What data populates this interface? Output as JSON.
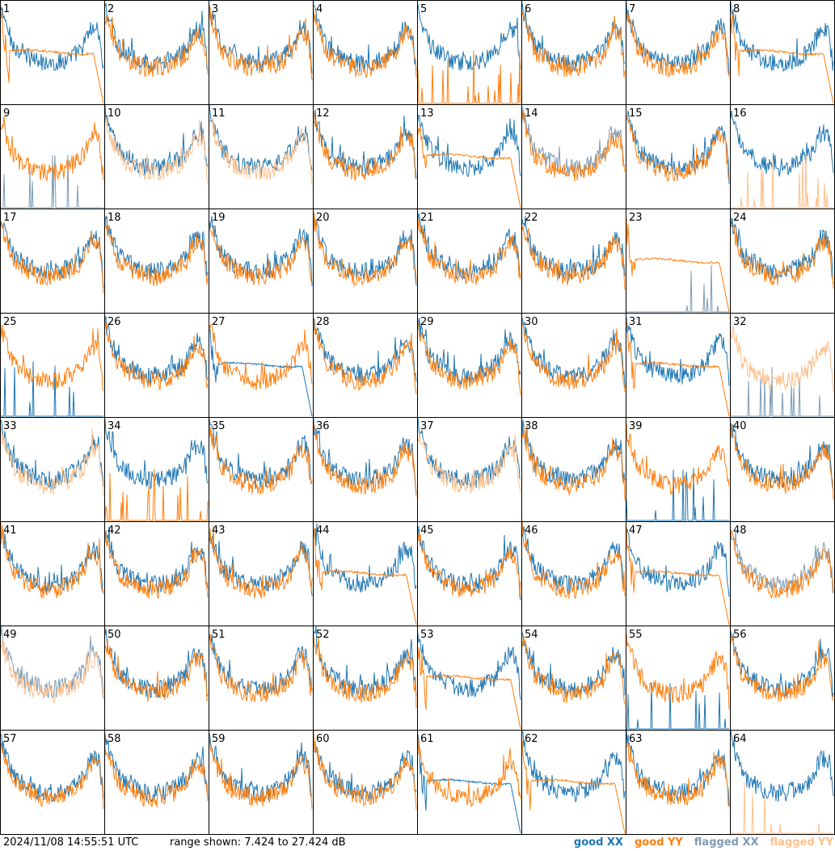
{
  "footer": {
    "timestamp": "2024/11/08 14:55:51 UTC",
    "range_text": "range shown: 7.424 to 27.424 dB"
  },
  "legend": [
    {
      "key": "good_xx",
      "label": "good XX",
      "color": "#1f77b4"
    },
    {
      "key": "good_yy",
      "label": "good YY",
      "color": "#ff7f0e"
    },
    {
      "key": "flagged_xx",
      "label": "flagged XX",
      "color": "#7f9cb4"
    },
    {
      "key": "flagged_yy",
      "label": "flagged YY",
      "color": "#fec08c"
    }
  ],
  "chart_data": {
    "type": "line",
    "layout": "8x8 small multiples",
    "ylim": [
      7.424,
      27.424
    ],
    "yunit": "dB",
    "panels": [
      {
        "id": "1",
        "xx": "good",
        "yy": "good",
        "profile": "normal",
        "yy_shape": "rolloff"
      },
      {
        "id": "2",
        "xx": "good",
        "yy": "good",
        "profile": "normal"
      },
      {
        "id": "3",
        "xx": "good",
        "yy": "good",
        "profile": "normal"
      },
      {
        "id": "4",
        "xx": "good",
        "yy": "good",
        "profile": "normal"
      },
      {
        "id": "5",
        "xx": "good",
        "yy": "good",
        "profile": "normal",
        "yy_shape": "spikes"
      },
      {
        "id": "6",
        "xx": "good",
        "yy": "good",
        "profile": "normal"
      },
      {
        "id": "7",
        "xx": "good",
        "yy": "good",
        "profile": "normal"
      },
      {
        "id": "8",
        "xx": "good",
        "yy": "good",
        "profile": "normal",
        "yy_shape": "rolloff"
      },
      {
        "id": "9",
        "xx": "flagged",
        "yy": "good",
        "profile": "normal",
        "xx_shape": "spikes"
      },
      {
        "id": "10",
        "xx": "good",
        "yy": "flagged",
        "profile": "normal"
      },
      {
        "id": "11",
        "xx": "good",
        "yy": "flagged",
        "profile": "normal"
      },
      {
        "id": "12",
        "xx": "good",
        "yy": "good",
        "profile": "normal"
      },
      {
        "id": "13",
        "xx": "good",
        "yy": "good",
        "profile": "normal",
        "yy_shape": "rolloff"
      },
      {
        "id": "14",
        "xx": "flagged",
        "yy": "good",
        "profile": "normal"
      },
      {
        "id": "15",
        "xx": "good",
        "yy": "good",
        "profile": "normal"
      },
      {
        "id": "16",
        "xx": "good",
        "yy": "flagged",
        "profile": "normal",
        "yy_shape": "spikes"
      },
      {
        "id": "17",
        "xx": "good",
        "yy": "good",
        "profile": "normal"
      },
      {
        "id": "18",
        "xx": "good",
        "yy": "good",
        "profile": "normal"
      },
      {
        "id": "19",
        "xx": "good",
        "yy": "good",
        "profile": "normal"
      },
      {
        "id": "20",
        "xx": "good",
        "yy": "good",
        "profile": "normal"
      },
      {
        "id": "21",
        "xx": "good",
        "yy": "good",
        "profile": "normal"
      },
      {
        "id": "22",
        "xx": "good",
        "yy": "good",
        "profile": "normal"
      },
      {
        "id": "23",
        "xx": "flagged",
        "yy": "good",
        "profile": "normal",
        "xx_shape": "spikes",
        "yy_shape": "rolloff"
      },
      {
        "id": "24",
        "xx": "good",
        "yy": "good",
        "profile": "normal"
      },
      {
        "id": "25",
        "xx": "good",
        "yy": "good",
        "profile": "normal",
        "xx_shape": "spikes"
      },
      {
        "id": "26",
        "xx": "good",
        "yy": "good",
        "profile": "normal"
      },
      {
        "id": "27",
        "xx": "good",
        "yy": "good",
        "profile": "normal",
        "xx_shape": "rolloff"
      },
      {
        "id": "28",
        "xx": "good",
        "yy": "good",
        "profile": "normal"
      },
      {
        "id": "29",
        "xx": "good",
        "yy": "good",
        "profile": "normal"
      },
      {
        "id": "30",
        "xx": "good",
        "yy": "good",
        "profile": "normal"
      },
      {
        "id": "31",
        "xx": "good",
        "yy": "good",
        "profile": "normal",
        "yy_shape": "rolloff"
      },
      {
        "id": "32",
        "xx": "flagged",
        "yy": "flagged",
        "profile": "normal",
        "xx_shape": "spikes"
      },
      {
        "id": "33",
        "xx": "good",
        "yy": "flagged",
        "profile": "normal"
      },
      {
        "id": "34",
        "xx": "good",
        "yy": "good",
        "profile": "normal",
        "yy_shape": "spikes"
      },
      {
        "id": "35",
        "xx": "good",
        "yy": "good",
        "profile": "normal"
      },
      {
        "id": "36",
        "xx": "good",
        "yy": "good",
        "profile": "normal"
      },
      {
        "id": "37",
        "xx": "good",
        "yy": "flagged",
        "profile": "normal"
      },
      {
        "id": "38",
        "xx": "good",
        "yy": "good",
        "profile": "normal"
      },
      {
        "id": "39",
        "xx": "good",
        "yy": "good",
        "profile": "normal",
        "xx_shape": "spikes"
      },
      {
        "id": "40",
        "xx": "good",
        "yy": "good",
        "profile": "normal"
      },
      {
        "id": "41",
        "xx": "good",
        "yy": "good",
        "profile": "normal"
      },
      {
        "id": "42",
        "xx": "good",
        "yy": "good",
        "profile": "normal"
      },
      {
        "id": "43",
        "xx": "good",
        "yy": "good",
        "profile": "normal"
      },
      {
        "id": "44",
        "xx": "good",
        "yy": "good",
        "profile": "normal",
        "yy_shape": "rolloff"
      },
      {
        "id": "45",
        "xx": "good",
        "yy": "good",
        "profile": "normal"
      },
      {
        "id": "46",
        "xx": "good",
        "yy": "good",
        "profile": "normal"
      },
      {
        "id": "47",
        "xx": "good",
        "yy": "good",
        "profile": "normal",
        "yy_shape": "rolloff"
      },
      {
        "id": "48",
        "xx": "flagged",
        "yy": "good",
        "profile": "normal"
      },
      {
        "id": "49",
        "xx": "flagged",
        "yy": "flagged",
        "profile": "normal"
      },
      {
        "id": "50",
        "xx": "good",
        "yy": "good",
        "profile": "normal"
      },
      {
        "id": "51",
        "xx": "good",
        "yy": "good",
        "profile": "normal"
      },
      {
        "id": "52",
        "xx": "good",
        "yy": "good",
        "profile": "normal"
      },
      {
        "id": "53",
        "xx": "good",
        "yy": "good",
        "profile": "normal",
        "yy_shape": "rolloff"
      },
      {
        "id": "54",
        "xx": "good",
        "yy": "good",
        "profile": "normal"
      },
      {
        "id": "55",
        "xx": "good",
        "yy": "good",
        "profile": "normal",
        "xx_shape": "spikes"
      },
      {
        "id": "56",
        "xx": "good",
        "yy": "good",
        "profile": "normal"
      },
      {
        "id": "57",
        "xx": "good",
        "yy": "good",
        "profile": "normal"
      },
      {
        "id": "58",
        "xx": "good",
        "yy": "good",
        "profile": "normal"
      },
      {
        "id": "59",
        "xx": "good",
        "yy": "good",
        "profile": "normal"
      },
      {
        "id": "60",
        "xx": "good",
        "yy": "good",
        "profile": "normal"
      },
      {
        "id": "61",
        "xx": "good",
        "yy": "good",
        "profile": "normal",
        "xx_shape": "rolloff"
      },
      {
        "id": "62",
        "xx": "good",
        "yy": "good",
        "profile": "normal",
        "yy_shape": "rolloff"
      },
      {
        "id": "63",
        "xx": "good",
        "yy": "good",
        "profile": "normal"
      },
      {
        "id": "64",
        "xx": "good",
        "yy": "flagged",
        "profile": "normal",
        "yy_shape": "spikes"
      }
    ]
  }
}
